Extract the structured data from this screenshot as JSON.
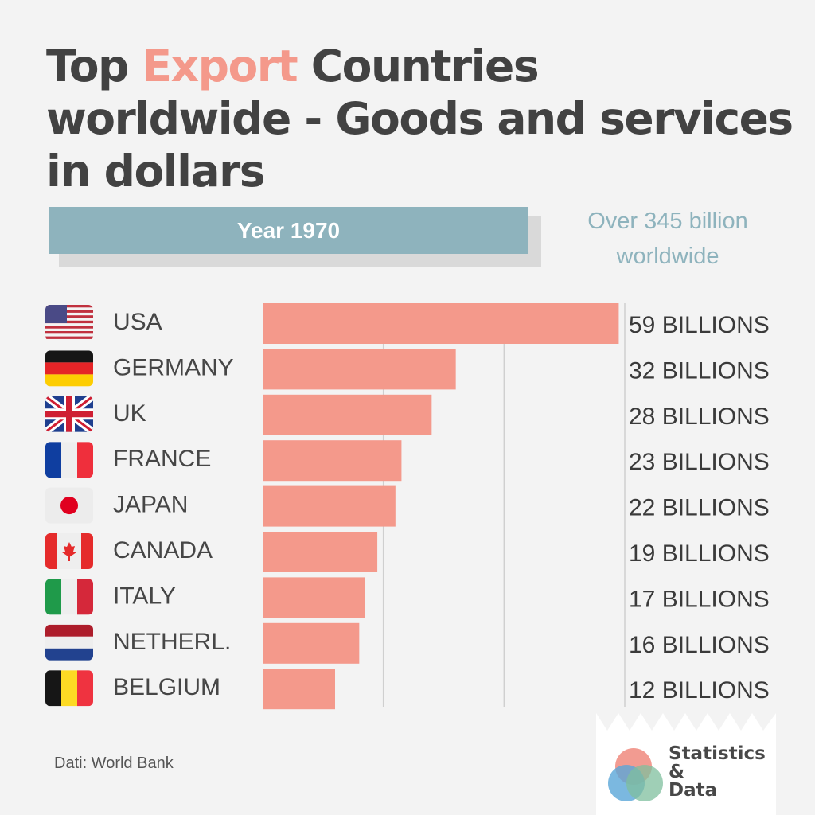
{
  "header": {
    "title_part1": "Top ",
    "title_accent": "Export",
    "title_part2": " Countries",
    "title_line2": "worldwide - Goods and services",
    "title_line3": "in dollars",
    "year_label": "Year 1970",
    "total_line1": "Over 345 billion",
    "total_line2": "worldwide"
  },
  "colors": {
    "bar": "#f4998b",
    "accent": "#f4998b",
    "year_box": "#8eb3bd",
    "text": "#464646",
    "grid": "#cfcfcf"
  },
  "chart_data": {
    "type": "bar",
    "orientation": "horizontal",
    "categories": [
      "USA",
      "GERMANY",
      "UK",
      "FRANCE",
      "JAPAN",
      "CANADA",
      "ITALY",
      "NETHERL.",
      "BELGIUM"
    ],
    "flags": [
      "us-flag-icon",
      "germany-flag-icon",
      "uk-flag-icon",
      "france-flag-icon",
      "japan-flag-icon",
      "canada-flag-icon",
      "italy-flag-icon",
      "netherlands-flag-icon",
      "belgium-flag-icon"
    ],
    "values": [
      59,
      32,
      28,
      23,
      22,
      19,
      17,
      16,
      12
    ],
    "data_labels": [
      "59 BILLIONS",
      "32 BILLIONS",
      "28 BILLIONS",
      "23 BILLIONS",
      "22 BILLIONS",
      "19 BILLIONS",
      "17 BILLIONS",
      "16 BILLIONS",
      "12 BILLIONS"
    ],
    "unit": "billion US dollars",
    "xlim": [
      0,
      60
    ],
    "gridlines": [
      0,
      20,
      40,
      60
    ],
    "grid": true
  },
  "footer": {
    "source": "Dati: World Bank",
    "logo_line1": "Statistics",
    "logo_line2": "&",
    "logo_line3": "Data"
  }
}
